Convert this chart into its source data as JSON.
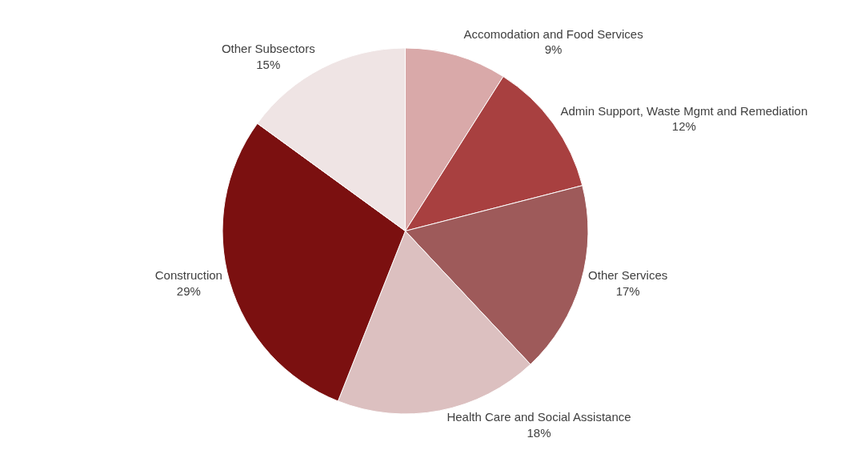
{
  "chart_data": {
    "type": "pie",
    "categories": [
      "Accomodation and Food Services",
      "Admin Support, Waste Mgmt and Remediation",
      "Other Services",
      "Health Care and Social Assistance",
      "Construction",
      "Other Subsectors"
    ],
    "values": [
      9,
      12,
      17,
      18,
      29,
      15
    ],
    "value_labels": [
      "9%",
      "12%",
      "17%",
      "18%",
      "29%",
      "15%"
    ],
    "colors": [
      "#d9a9a9",
      "#a84040",
      "#9e5a5a",
      "#dcc0c0",
      "#7b1010",
      "#efe4e4"
    ],
    "legend": false
  }
}
